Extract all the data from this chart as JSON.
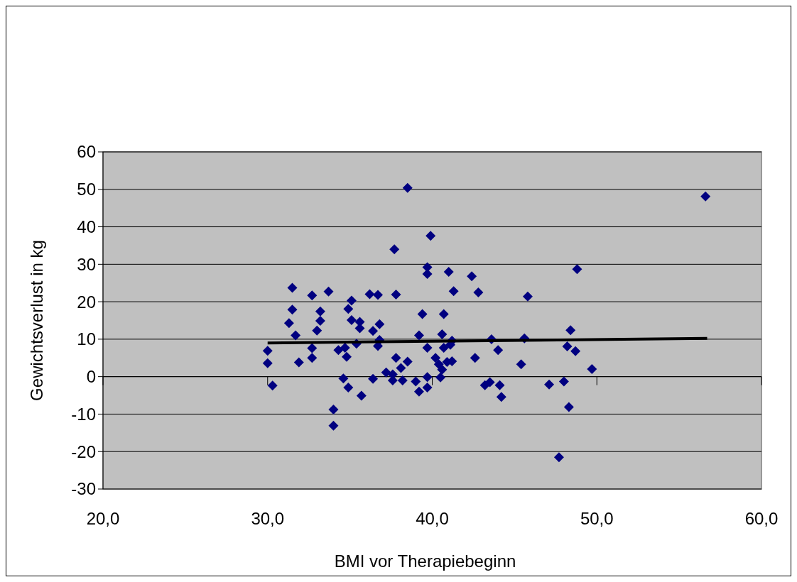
{
  "chart_data": {
    "type": "scatter",
    "xlabel": "BMI vor Therapiebeginn",
    "ylabel": "Gewichtsverlust in kg",
    "xlim": [
      20,
      60
    ],
    "xticks": [
      {
        "value": 20,
        "label": "20,0"
      },
      {
        "value": 30,
        "label": "30,0"
      },
      {
        "value": 40,
        "label": "40,0"
      },
      {
        "value": 50,
        "label": "50,0"
      },
      {
        "value": 60,
        "label": "60,0"
      }
    ],
    "ylim": [
      -30,
      60
    ],
    "yticks": [
      -30,
      -20,
      -10,
      0,
      10,
      20,
      30,
      40,
      50,
      60
    ],
    "grid": "y",
    "series": [
      {
        "color": "#000080",
        "marker": "diamond",
        "x": [
          30.0,
          30.0,
          30.3,
          31.5,
          31.5,
          31.3,
          31.7,
          31.9,
          32.7,
          33.7,
          33.2,
          33.2,
          33.0,
          32.7,
          32.7,
          35.1,
          34.9,
          35.1,
          35.6,
          35.6,
          35.4,
          34.3,
          34.7,
          34.8,
          34.6,
          34.9,
          35.7,
          34.0,
          34.0,
          36.2,
          36.7,
          36.4,
          36.8,
          36.7,
          36.8,
          36.4,
          37.7,
          37.8,
          37.8,
          37.2,
          37.6,
          37.6,
          38.5,
          39.9,
          39.7,
          39.7,
          41.0,
          42.4,
          41.3,
          42.8,
          39.4,
          40.7,
          39.2,
          40.6,
          41.2,
          39.7,
          40.7,
          41.1,
          43.6,
          44.0,
          38.5,
          38.1,
          40.2,
          40.4,
          40.9,
          41.2,
          40.6,
          42.6,
          38.2,
          39.0,
          39.7,
          39.7,
          39.2,
          40.5,
          43.2,
          43.5,
          44.1,
          44.2,
          48.8,
          45.8,
          48.4,
          45.6,
          48.2,
          48.7,
          45.4,
          49.7,
          47.1,
          48.0,
          48.3,
          47.7,
          56.6
        ],
        "values": [
          6.9,
          3.6,
          -2.4,
          23.7,
          17.9,
          14.3,
          11.0,
          3.8,
          21.7,
          22.7,
          17.4,
          14.9,
          12.3,
          7.6,
          5.0,
          20.3,
          18.1,
          15.1,
          14.6,
          12.9,
          8.8,
          7.1,
          7.7,
          5.3,
          -0.5,
          -2.9,
          -5.1,
          -8.8,
          -13.1,
          22.0,
          21.8,
          12.2,
          14.0,
          8.2,
          9.8,
          -0.6,
          34.0,
          21.9,
          5.0,
          1.1,
          0.6,
          -1.0,
          50.4,
          37.6,
          29.2,
          27.4,
          28.0,
          26.8,
          22.8,
          22.5,
          16.7,
          16.7,
          11.0,
          11.3,
          9.6,
          7.7,
          7.7,
          8.5,
          10.0,
          7.1,
          4.0,
          2.3,
          5.0,
          3.3,
          3.9,
          4.1,
          1.9,
          5.0,
          -1.0,
          -1.3,
          -0.1,
          -2.9,
          -4.0,
          -0.2,
          -2.3,
          -1.5,
          -2.3,
          -5.4,
          28.7,
          21.4,
          12.4,
          10.2,
          8.1,
          6.8,
          3.3,
          2.0,
          -2.1,
          -1.3,
          -8.1,
          -21.5,
          48.1
        ]
      },
      {
        "type": "line",
        "color": "#000000",
        "marker": "none",
        "line_style": "solid",
        "x": [
          30.0,
          56.7
        ],
        "values": [
          9.0,
          10.2
        ]
      }
    ]
  }
}
